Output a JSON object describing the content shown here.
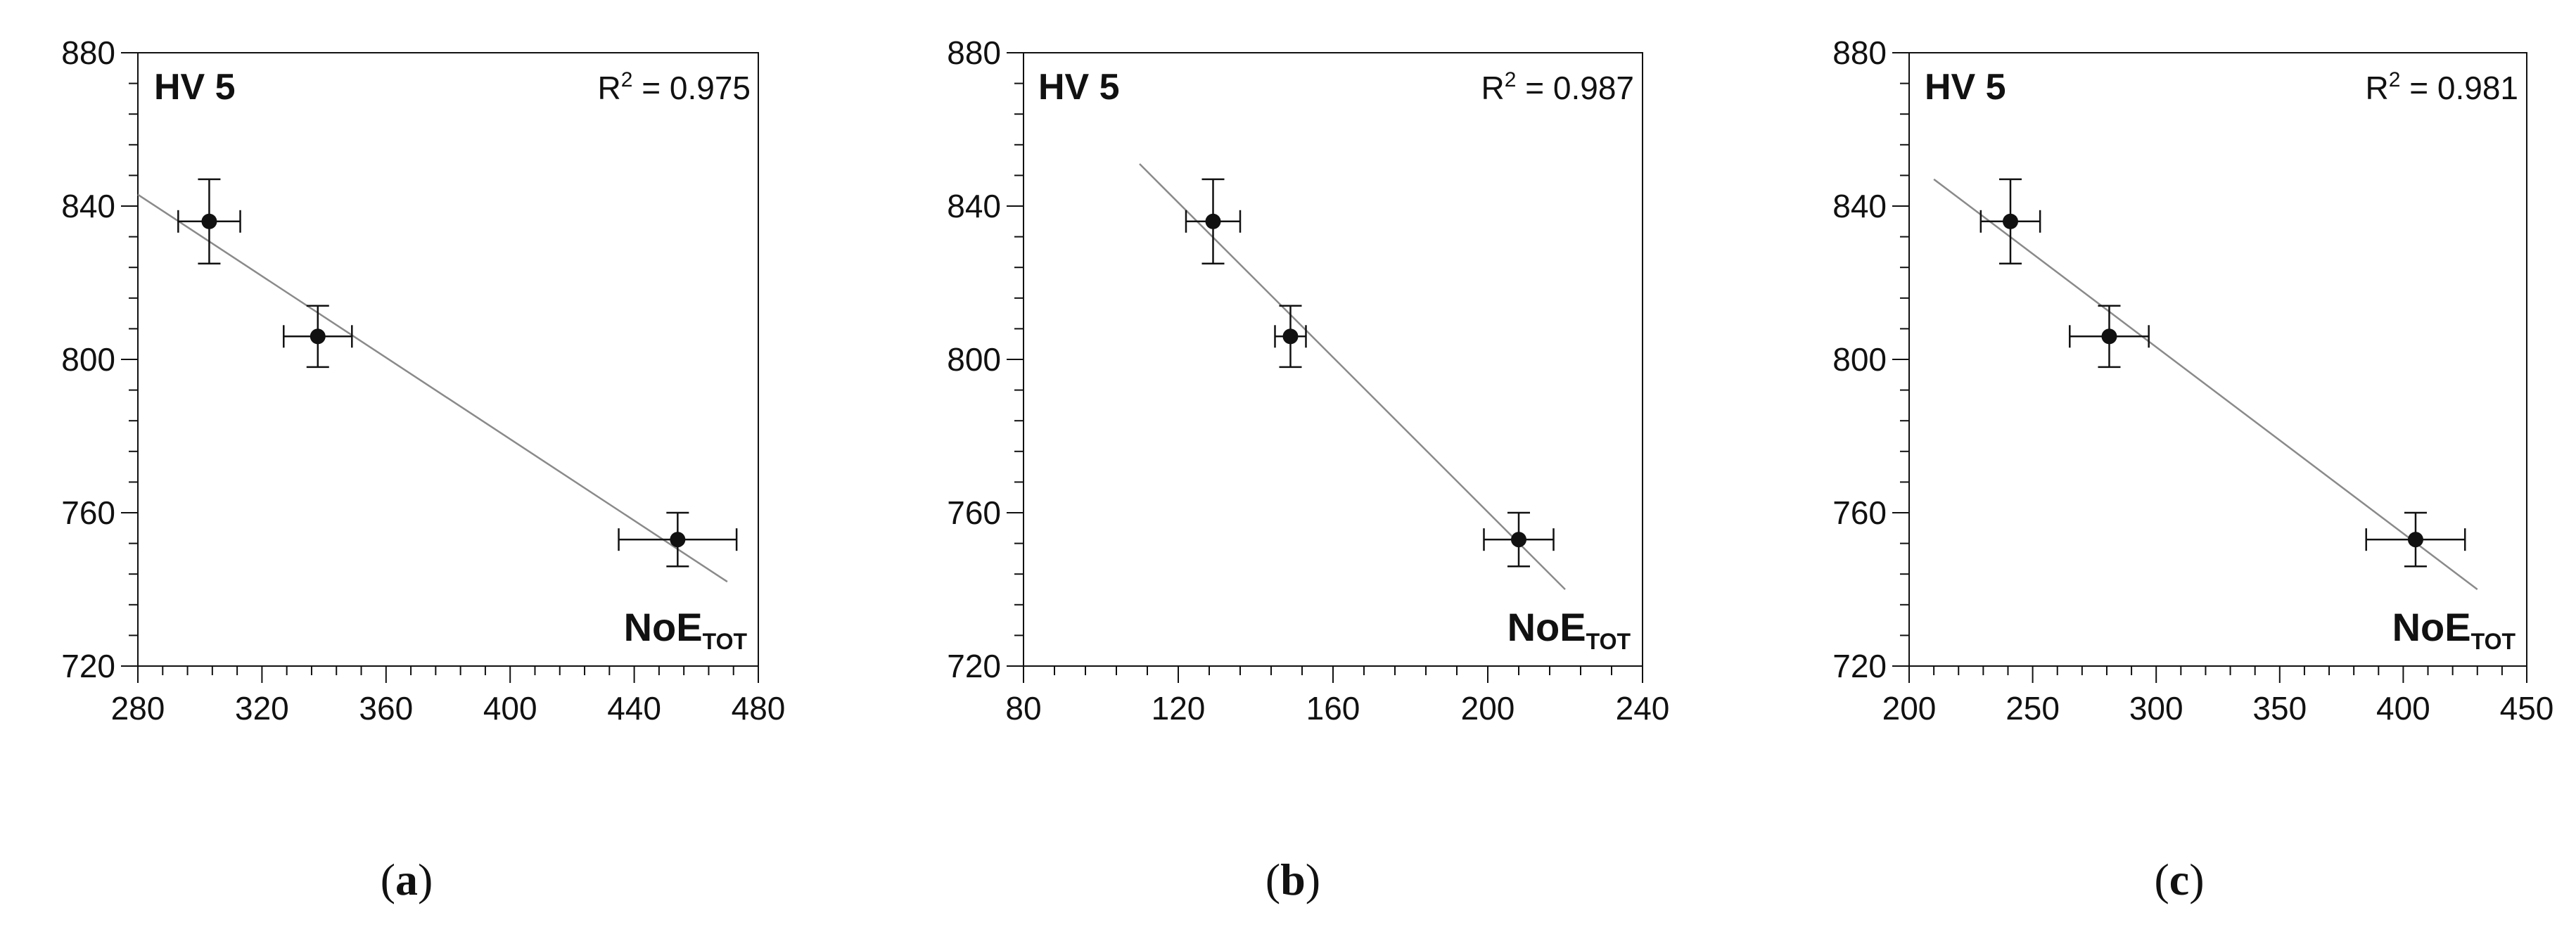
{
  "chart_data": [
    {
      "type": "scatter",
      "panel_label": "HV 5",
      "r2_text": "R² = 0.975",
      "x_label_main": "NoE",
      "x_label_sub": "TOT",
      "caption_letter": "a",
      "xlim": [
        280,
        480
      ],
      "ylim": [
        720,
        880
      ],
      "xticks": [
        280,
        320,
        360,
        400,
        440,
        480
      ],
      "yticks": [
        720,
        760,
        800,
        840,
        880
      ],
      "points": [
        {
          "x": 303,
          "y": 836,
          "xerr": 10,
          "yerr": 11
        },
        {
          "x": 338,
          "y": 806,
          "xerr": 11,
          "yerr": 8
        },
        {
          "x": 454,
          "y": 753,
          "xerr": 19,
          "yerr": 7
        }
      ],
      "fit_line": {
        "x": [
          280,
          470
        ],
        "y": [
          843,
          742
        ]
      }
    },
    {
      "type": "scatter",
      "panel_label": "HV 5",
      "r2_text": "R² = 0.987",
      "x_label_main": "NoE",
      "x_label_sub": "TOT",
      "caption_letter": "b",
      "xlim": [
        80,
        240
      ],
      "ylim": [
        720,
        880
      ],
      "xticks": [
        80,
        120,
        160,
        200,
        240
      ],
      "yticks": [
        720,
        760,
        800,
        840,
        880
      ],
      "points": [
        {
          "x": 129,
          "y": 836,
          "xerr": 7,
          "yerr": 11
        },
        {
          "x": 149,
          "y": 806,
          "xerr": 4,
          "yerr": 8
        },
        {
          "x": 208,
          "y": 753,
          "xerr": 9,
          "yerr": 7
        }
      ],
      "fit_line": {
        "x": [
          110,
          220
        ],
        "y": [
          851,
          740
        ]
      }
    },
    {
      "type": "scatter",
      "panel_label": "HV 5",
      "r2_text": "R² = 0.981",
      "x_label_main": "NoE",
      "x_label_sub": "TOT",
      "caption_letter": "c",
      "xlim": [
        200,
        450
      ],
      "ylim": [
        720,
        880
      ],
      "xticks": [
        200,
        250,
        300,
        350,
        400,
        450
      ],
      "yticks": [
        720,
        760,
        800,
        840,
        880
      ],
      "points": [
        {
          "x": 241,
          "y": 836,
          "xerr": 12,
          "yerr": 11
        },
        {
          "x": 281,
          "y": 806,
          "xerr": 16,
          "yerr": 8
        },
        {
          "x": 405,
          "y": 753,
          "xerr": 20,
          "yerr": 7
        }
      ],
      "fit_line": {
        "x": [
          210,
          430
        ],
        "y": [
          847,
          740
        ]
      }
    }
  ]
}
